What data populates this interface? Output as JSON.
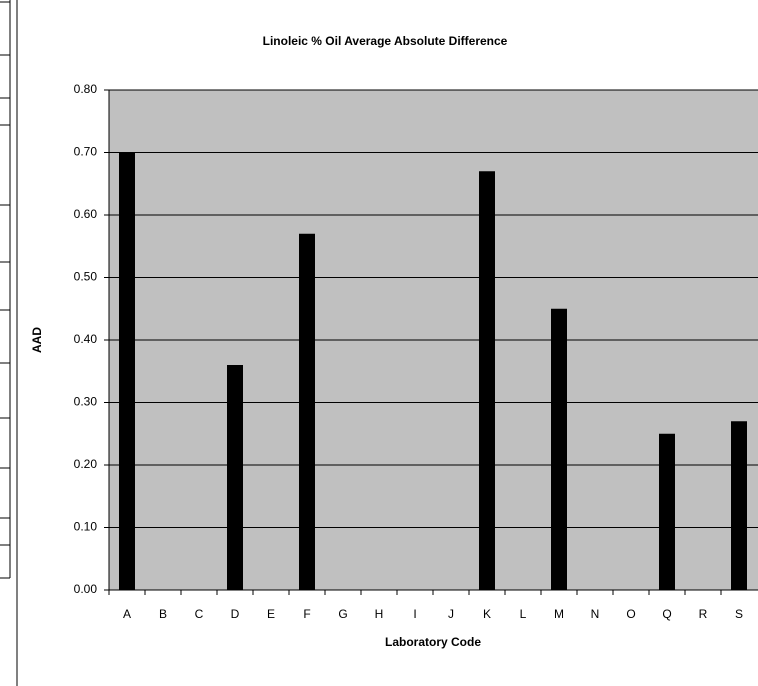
{
  "chart_data": {
    "type": "bar",
    "title": "Linoleic % Oil Average Absolute Difference",
    "x_label": "Laboratory Code",
    "y_label": "AAD",
    "categories": [
      "A",
      "B",
      "C",
      "D",
      "E",
      "F",
      "G",
      "H",
      "I",
      "J",
      "K",
      "L",
      "M",
      "N",
      "O",
      "Q",
      "R",
      "S"
    ],
    "values": [
      0.7,
      null,
      null,
      0.36,
      null,
      0.57,
      null,
      null,
      null,
      null,
      0.67,
      null,
      0.45,
      null,
      null,
      0.25,
      null,
      0.27
    ],
    "color": "#000000",
    "ylim": [
      0,
      0.8
    ],
    "yticks": [
      {
        "value": 0,
        "label": "0.00"
      },
      {
        "value": 0.1,
        "label": "0.10"
      },
      {
        "value": 0.2,
        "label": "0.20"
      },
      {
        "value": 0.3,
        "label": "0.30"
      },
      {
        "value": 0.4,
        "label": "0.40"
      },
      {
        "value": 0.5,
        "label": "0.50"
      },
      {
        "value": 0.6,
        "label": "0.60"
      },
      {
        "value": 0.7,
        "label": "0.70"
      },
      {
        "value": 0.8,
        "label": "0.80"
      }
    ],
    "grid": true
  }
}
